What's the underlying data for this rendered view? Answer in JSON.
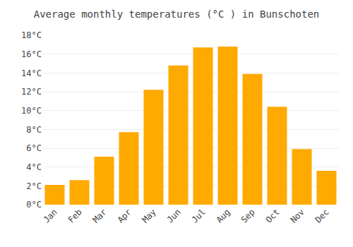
{
  "chart_data": {
    "type": "bar",
    "title": "Average monthly temperatures (°C ) in Bunschoten",
    "categories": [
      "Jan",
      "Feb",
      "Mar",
      "Apr",
      "May",
      "Jun",
      "Jul",
      "Aug",
      "Sep",
      "Oct",
      "Nov",
      "Dec"
    ],
    "values": [
      2.1,
      2.6,
      5.1,
      7.7,
      12.2,
      14.8,
      16.7,
      16.8,
      13.9,
      10.4,
      5.9,
      3.6
    ],
    "color": "#FFAA00",
    "ylim": [
      0,
      18
    ],
    "yticks": [
      {
        "value": 0,
        "label": "0°C"
      },
      {
        "value": 2,
        "label": "2°C"
      },
      {
        "value": 4,
        "label": "4°C"
      },
      {
        "value": 6,
        "label": "6°C"
      },
      {
        "value": 8,
        "label": "8°C"
      },
      {
        "value": 10,
        "label": "10°C"
      },
      {
        "value": 12,
        "label": "12°C"
      },
      {
        "value": 14,
        "label": "14°C"
      },
      {
        "value": 16,
        "label": "16°C"
      },
      {
        "value": 18,
        "label": "18°C"
      }
    ],
    "grid": true
  }
}
